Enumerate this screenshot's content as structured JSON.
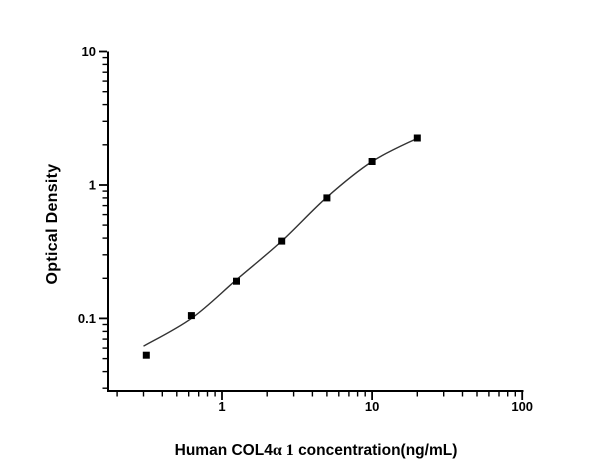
{
  "chart_data": {
    "type": "scatter",
    "title": "",
    "ylabel": "Optical Density",
    "xlabel": "Human COL4α 1 concentration(ng/mL)",
    "xlabel_parts": {
      "prefix": "Human COL4",
      "greek": "α 1",
      "suffix": " concentration(ng/mL)"
    },
    "x_scale": "log",
    "y_scale": "log",
    "xlim": [
      0.174,
      102
    ],
    "ylim": [
      0.0286,
      10
    ],
    "x_major_ticks": [
      1,
      10,
      100
    ],
    "x_major_tick_labels": [
      "1",
      "10",
      "100"
    ],
    "y_major_ticks": [
      0.1,
      1,
      10
    ],
    "y_major_tick_labels": [
      "0.1",
      "1",
      "10"
    ],
    "grid": false,
    "legend_visible": false,
    "axis_color": "#000000",
    "series": [
      {
        "name": "standards",
        "plot": "scatter",
        "marker": "filled-square",
        "color": "#000000",
        "x": [
          0.313,
          0.625,
          1.25,
          2.5,
          5,
          10,
          20
        ],
        "y": [
          0.053,
          0.105,
          0.19,
          0.38,
          0.8,
          1.5,
          2.25
        ]
      },
      {
        "name": "fit-curve",
        "plot": "line",
        "color": "#333333",
        "x": [
          0.3,
          0.625,
          1.25,
          2.5,
          5,
          10,
          20
        ],
        "y": [
          0.062,
          0.1,
          0.195,
          0.38,
          0.81,
          1.5,
          2.24
        ]
      }
    ]
  }
}
